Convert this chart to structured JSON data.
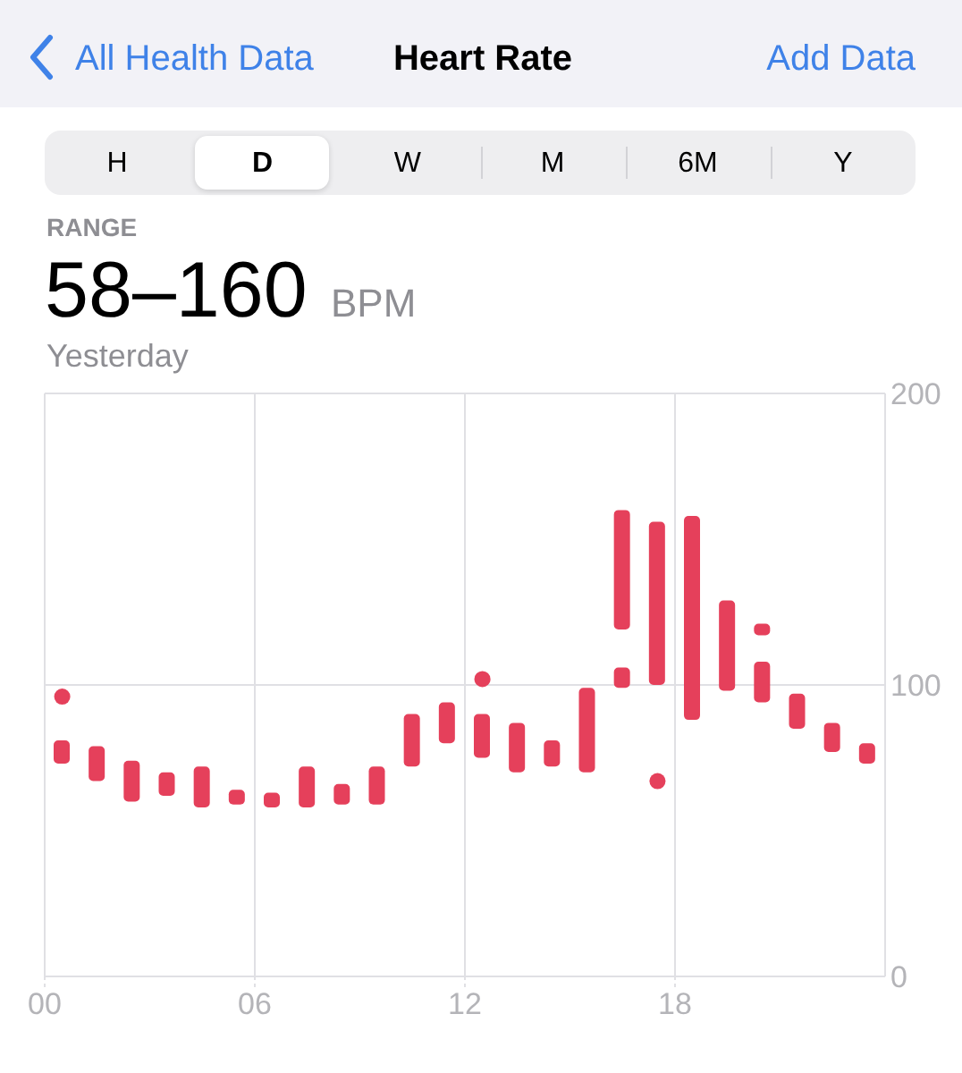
{
  "chart_data": {
    "type": "bar",
    "title": "Heart Rate",
    "annotations": [
      "All Health Data",
      "Add Data",
      "H",
      "D",
      "W",
      "M",
      "6M",
      "Y",
      "RANGE",
      "58–160",
      "BPM",
      "Yesterday"
    ],
    "x": [
      0.5,
      1.5,
      2.5,
      3.5,
      4.5,
      5.5,
      6.5,
      7.5,
      8.5,
      9.5,
      10.5,
      11.5,
      12.5,
      13.5,
      14.5,
      15.5,
      16.5,
      17.5,
      18.5,
      19.5,
      20.5,
      21.5,
      22.5,
      23.5
    ],
    "xlim": [
      0,
      24
    ],
    "xticks": [
      {
        "value": 0,
        "label": "00"
      },
      {
        "value": 6,
        "label": "06"
      },
      {
        "value": 12,
        "label": "12"
      },
      {
        "value": 18,
        "label": "18"
      }
    ],
    "ylim": [
      0,
      200
    ],
    "yticks": [
      0,
      100,
      200
    ],
    "grid": true,
    "marker": "circle",
    "series": [
      {
        "color": "#e5405b",
        "base": [
          73,
          67,
          60,
          62,
          58,
          59,
          58,
          58,
          59,
          59,
          72,
          80,
          75,
          70,
          72,
          70,
          119,
          100,
          88,
          98,
          94,
          85,
          77,
          73
        ],
        "values": [
          8,
          12,
          14,
          8,
          14,
          5,
          5,
          14,
          7,
          13,
          18,
          14,
          15,
          17,
          9,
          29,
          41,
          56,
          70,
          31,
          14,
          12,
          10,
          7
        ]
      },
      {
        "color": "#e5405b",
        "base": [
          null,
          null,
          null,
          null,
          null,
          null,
          null,
          null,
          null,
          null,
          null,
          null,
          null,
          null,
          null,
          null,
          99,
          null,
          null,
          null,
          117,
          null,
          null,
          null
        ],
        "values": [
          null,
          null,
          null,
          null,
          null,
          null,
          null,
          null,
          null,
          null,
          null,
          null,
          null,
          null,
          null,
          null,
          7,
          null,
          null,
          null,
          4,
          null,
          null,
          null
        ]
      },
      {
        "type": "scatter",
        "color": "#e5405b",
        "x": [
          0.5,
          12.5,
          17.5
        ],
        "values": [
          96,
          102,
          67
        ]
      }
    ]
  }
}
